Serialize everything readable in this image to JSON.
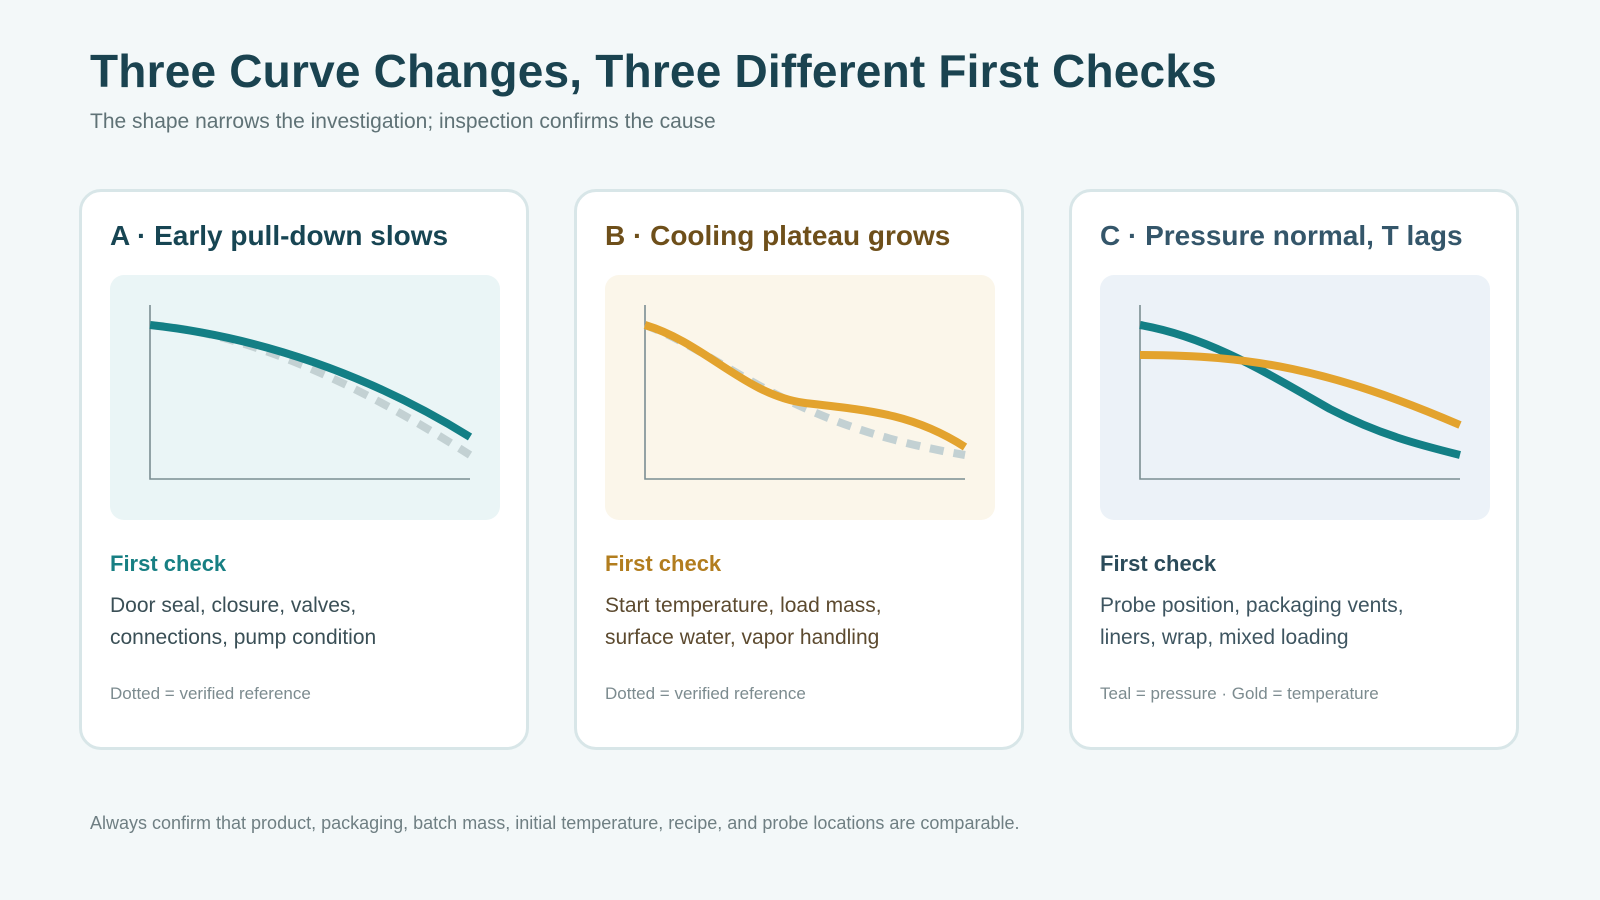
{
  "title": "Three Curve Changes, Three Different First Checks",
  "subtitle": "The shape narrows the investigation; inspection confirms the cause",
  "colors": {
    "teal": "#137f85",
    "gold": "#e3a32e",
    "reference_dotted": "#c3d1d3",
    "axis": "#7b8e92"
  },
  "cards": [
    {
      "title": "A · Early pull-down slows",
      "check_label": "First check",
      "check_lines": [
        "Door seal, closure, valves,",
        "connections, pump condition"
      ],
      "note": "Dotted = verified reference"
    },
    {
      "title": "B · Cooling plateau grows",
      "check_label": "First check",
      "check_lines": [
        "Start temperature, load mass,",
        "surface water, vapor handling"
      ],
      "note": "Dotted = verified reference"
    },
    {
      "title": "C · Pressure normal, T lags",
      "check_label": "First check",
      "check_lines": [
        "Probe position, packaging vents,",
        "liners, wrap, mixed loading"
      ],
      "note": "Teal = pressure · Gold = temperature"
    }
  ],
  "footer": "Always confirm that product, packaging, batch mass, initial temperature, recipe, and probe locations are comparable."
}
